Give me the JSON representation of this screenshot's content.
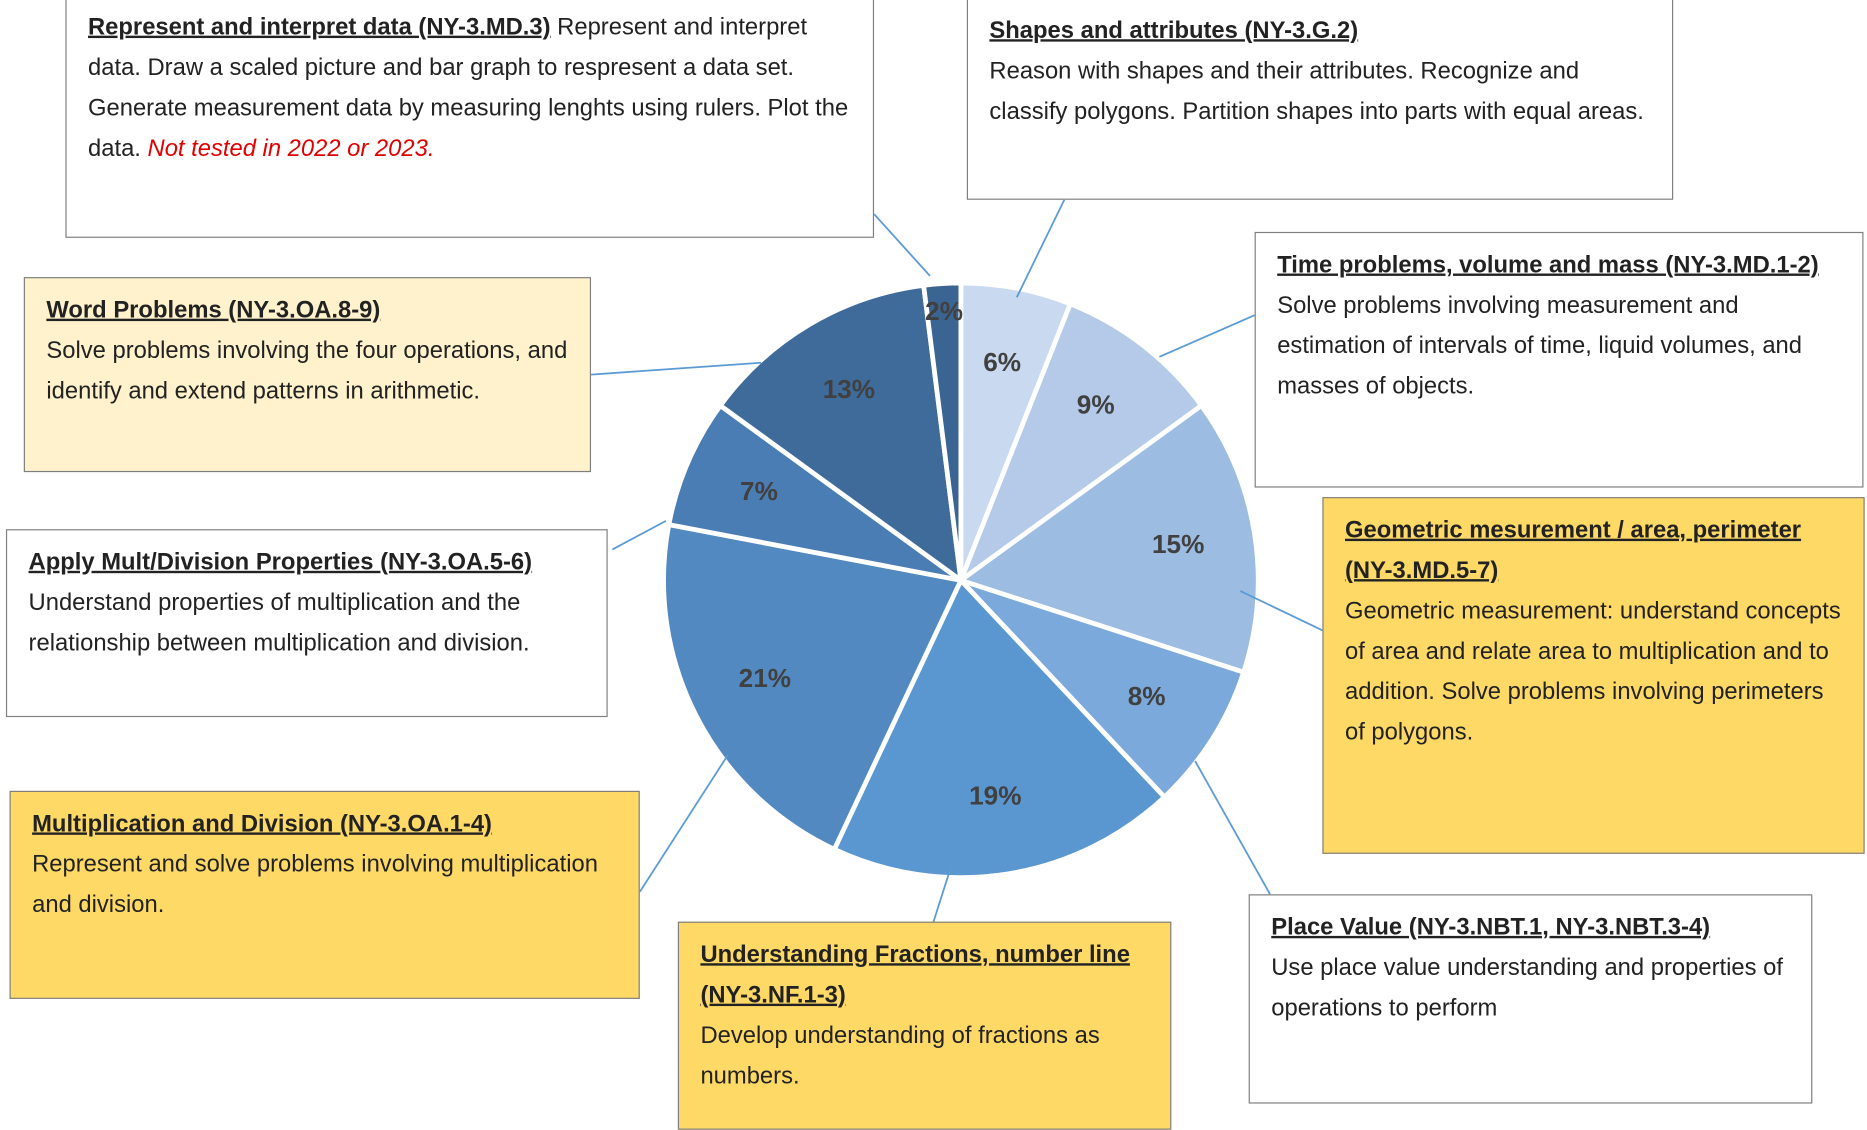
{
  "chart_data": {
    "type": "pie",
    "categories": [
      "Shapes and attributes (NY-3.G.2)",
      "Time problems, volume and mass (NY-3.MD.1-2)",
      "Geometric mesurement / area, perimeter (NY-3.MD.5-7)",
      "Place Value (NY-3.NBT.1, NY-3.NBT.3-4)",
      "Understanding Fractions, number line (NY-3.NF.1-3)",
      "Multiplication and Division (NY-3.OA.1-4)",
      "Apply Mult/Division Properties (NY-3.OA.5-6)",
      "Word Problems (NY-3.OA.8-9)",
      "Represent and interpret data (NY-3.MD.3)"
    ],
    "descriptions": [
      "Reason with shapes and their attributes. Recognize and classify polygons. Partition shapes into parts with equal areas.",
      "Solve problems involving measurement and estimation of intervals of time, liquid volumes, and masses of objects.",
      "Geometric measurement: understand concepts of area and relate area to multiplication and to addition. Solve problems involving perimeters of polygons.",
      "Use place value understanding and properties of operations to perform",
      "Develop understanding of fractions as numbers.",
      "Represent and solve problems involving multiplication and division.",
      "Understand properties of multiplication and the relationship between multiplication and division.",
      "Solve problems involving the four operations, and identify and extend patterns in arithmetic.",
      "Represent and interpret data. Draw a scaled picture and bar graph to respresent a data set. Generate measurement data by measuring lenghts using rulers. Plot the data."
    ],
    "annotation": "Not tested in 2022 or 2023.",
    "values": [
      6,
      9,
      15,
      8,
      19,
      21,
      7,
      13,
      2
    ],
    "value_labels": [
      "6%",
      "9%",
      "15%",
      "8%",
      "19%",
      "21%",
      "7%",
      "13%",
      "2%"
    ],
    "colors": [
      "#c9d9ef",
      "#b4cae8",
      "#9cbce2",
      "#7ba9db",
      "#5a97d0",
      "#5289c0",
      "#4a7db4",
      "#3f6b9b",
      "#3a6492"
    ],
    "box_colors": [
      "#ffffff",
      "#ffffff",
      "#ffd966",
      "#ffffff",
      "#ffd966",
      "#ffd966",
      "#ffffff",
      "#fff2cc",
      "#ffffff"
    ]
  }
}
